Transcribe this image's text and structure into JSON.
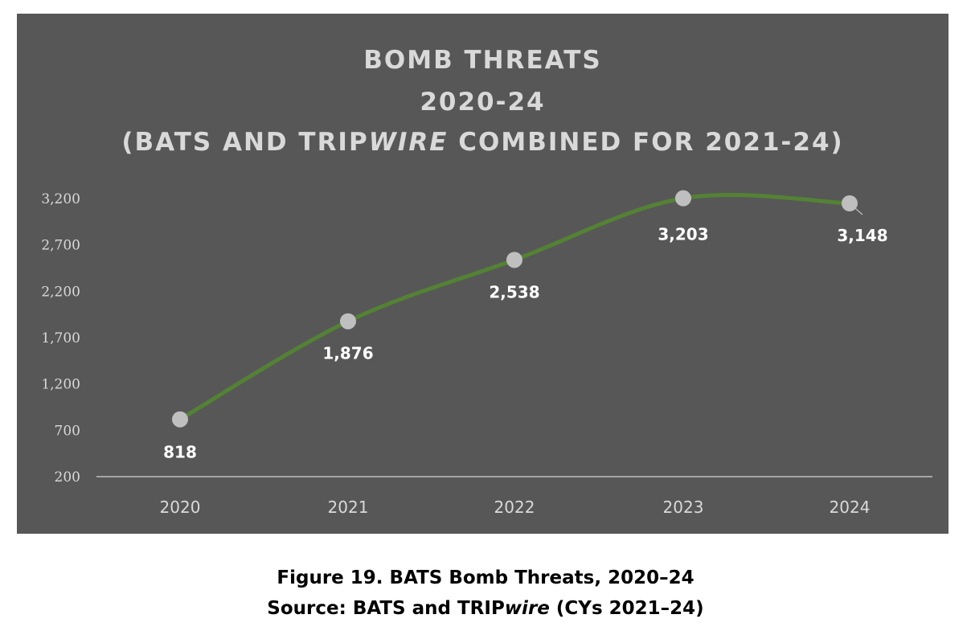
{
  "chart_data": {
    "type": "line",
    "title_lines": [
      "BOMB THREATS",
      "2020-24"
    ],
    "title_line3": {
      "pre": "(BATS AND TRIP",
      "italic": "WIRE",
      "post": " COMBINED FOR 2021-24)"
    },
    "categories": [
      "2020",
      "2021",
      "2022",
      "2023",
      "2024"
    ],
    "values": [
      818,
      1876,
      2538,
      3203,
      3148
    ],
    "data_labels": [
      "818",
      "1,876",
      "2,538",
      "3,203",
      "3,148"
    ],
    "y_ticks": [
      200,
      700,
      1200,
      1700,
      2200,
      2700,
      3200
    ],
    "y_tick_labels": [
      "200",
      "700",
      "1,200",
      "1,700",
      "2,200",
      "2,700",
      "3,200"
    ],
    "ylim": [
      200,
      3200
    ],
    "grid": false,
    "smooth": true,
    "colors": {
      "background": "#575757",
      "line": "#548235",
      "marker": "#bfbfbf",
      "text": "#d9d9d9",
      "axis": "#bfbfbf"
    }
  },
  "caption": {
    "line1": "Figure 19. BATS Bomb Threats, 2020–24",
    "line2_pre": "Source: BATS and TRIP",
    "line2_italic": "wire",
    "line2_post": " (CYs 2021–24)"
  }
}
